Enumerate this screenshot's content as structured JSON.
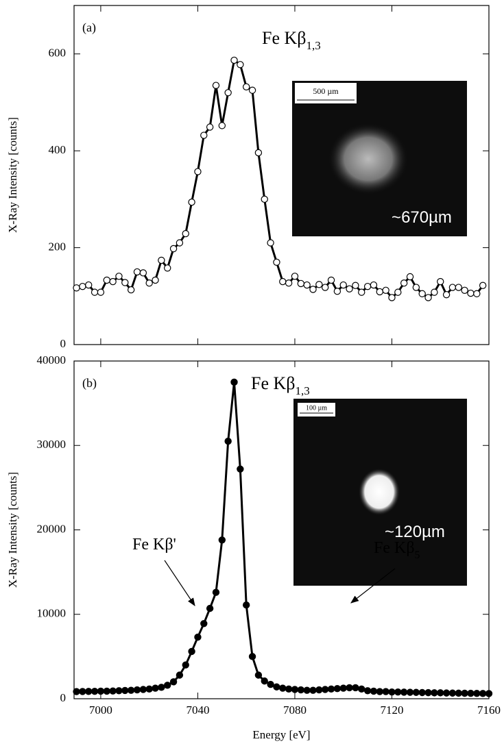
{
  "chart_data": [
    {
      "type": "line",
      "panel_label": "(a)",
      "y_label": "X-Ray Intensity [counts]",
      "marker": "open",
      "color": "#000000",
      "x": [
        6990,
        6992.5,
        6995,
        6997.5,
        7000,
        7002.5,
        7005,
        7007.5,
        7010,
        7012.5,
        7015,
        7017.5,
        7020,
        7022.5,
        7025,
        7027.5,
        7030,
        7032.5,
        7035,
        7037.5,
        7040,
        7042.5,
        7045,
        7047.5,
        7050,
        7052.5,
        7055,
        7057.5,
        7060,
        7062.5,
        7065,
        7067.5,
        7070,
        7072.5,
        7075,
        7077.5,
        7080,
        7082.5,
        7085,
        7087.5,
        7090,
        7092.5,
        7095,
        7097.5,
        7100,
        7102.5,
        7105,
        7107.5,
        7110,
        7112.5,
        7115,
        7117.5,
        7120,
        7122.5,
        7125,
        7127.5,
        7130,
        7132.5,
        7135,
        7137.5,
        7140,
        7142.5,
        7145,
        7147.5,
        7150,
        7152.5,
        7155,
        7157.5
      ],
      "values": [
        117,
        120,
        123,
        108,
        108,
        133,
        130,
        141,
        128,
        113,
        150,
        148,
        127,
        133,
        174,
        158,
        198,
        210,
        229,
        294,
        357,
        432,
        449,
        535,
        452,
        520,
        587,
        578,
        532,
        525,
        396,
        300,
        210,
        170,
        130,
        127,
        141,
        126,
        123,
        114,
        124,
        118,
        133,
        110,
        123,
        115,
        122,
        108,
        120,
        123,
        109,
        112,
        97,
        108,
        127,
        140,
        118,
        105,
        97,
        108,
        130,
        103,
        118,
        118,
        112,
        106,
        105,
        122
      ],
      "xlim": [
        6989,
        7160
      ],
      "xticks": [
        7000,
        7040,
        7080,
        7120,
        7160
      ],
      "xtick_labels": false,
      "ylim": [
        0,
        700
      ],
      "yticks": [
        0,
        200,
        400,
        600
      ],
      "annotations": [
        {
          "text": "Fe Kβ",
          "sub": "1,3"
        }
      ],
      "inset": {
        "scale_bar": "500 µm",
        "size_label": "~670µm"
      }
    },
    {
      "type": "line",
      "panel_label": "(b)",
      "y_label": "X-Ray Intensity [counts]",
      "x_label": "Energy [eV]",
      "marker": "filled",
      "color": "#000000",
      "x": [
        6990,
        6992.5,
        6995,
        6997.5,
        7000,
        7002.5,
        7005,
        7007.5,
        7010,
        7012.5,
        7015,
        7017.5,
        7020,
        7022.5,
        7025,
        7027.5,
        7030,
        7032.5,
        7035,
        7037.5,
        7040,
        7042.5,
        7045,
        7047.5,
        7050,
        7052.5,
        7055,
        7057.5,
        7060,
        7062.5,
        7065,
        7067.5,
        7070,
        7072.5,
        7075,
        7077.5,
        7080,
        7082.5,
        7085,
        7087.5,
        7090,
        7092.5,
        7095,
        7097.5,
        7100,
        7102.5,
        7105,
        7107.5,
        7110,
        7112.5,
        7115,
        7117.5,
        7120,
        7122.5,
        7125,
        7127.5,
        7130,
        7132.5,
        7135,
        7137.5,
        7140,
        7142.5,
        7145,
        7147.5,
        7150,
        7152.5,
        7155,
        7157.5,
        7160
      ],
      "values": [
        850,
        860,
        870,
        880,
        900,
        900,
        920,
        950,
        980,
        1000,
        1050,
        1100,
        1150,
        1250,
        1350,
        1600,
        2000,
        2800,
        4000,
        5600,
        7300,
        8900,
        10700,
        12600,
        18800,
        30500,
        37500,
        27200,
        11100,
        5000,
        2800,
        2100,
        1700,
        1400,
        1250,
        1150,
        1100,
        1050,
        1000,
        1000,
        1050,
        1100,
        1150,
        1200,
        1250,
        1300,
        1300,
        1150,
        950,
        900,
        850,
        850,
        800,
        800,
        780,
        760,
        750,
        730,
        720,
        700,
        700,
        680,
        670,
        660,
        650,
        640,
        630,
        620,
        610
      ],
      "xlim": [
        6989,
        7160
      ],
      "xticks": [
        7000,
        7040,
        7080,
        7120,
        7160
      ],
      "xtick_labels": true,
      "ylim": [
        0,
        40000
      ],
      "yticks": [
        0,
        10000,
        20000,
        30000,
        40000
      ],
      "annotations": [
        {
          "text": "Fe Kβ",
          "sub": "1,3"
        },
        {
          "text": "Fe Kβ'"
        },
        {
          "text": "Fe Kβ",
          "sub": "5"
        }
      ],
      "inset": {
        "scale_bar": "100 µm",
        "size_label": "~120µm"
      }
    }
  ]
}
